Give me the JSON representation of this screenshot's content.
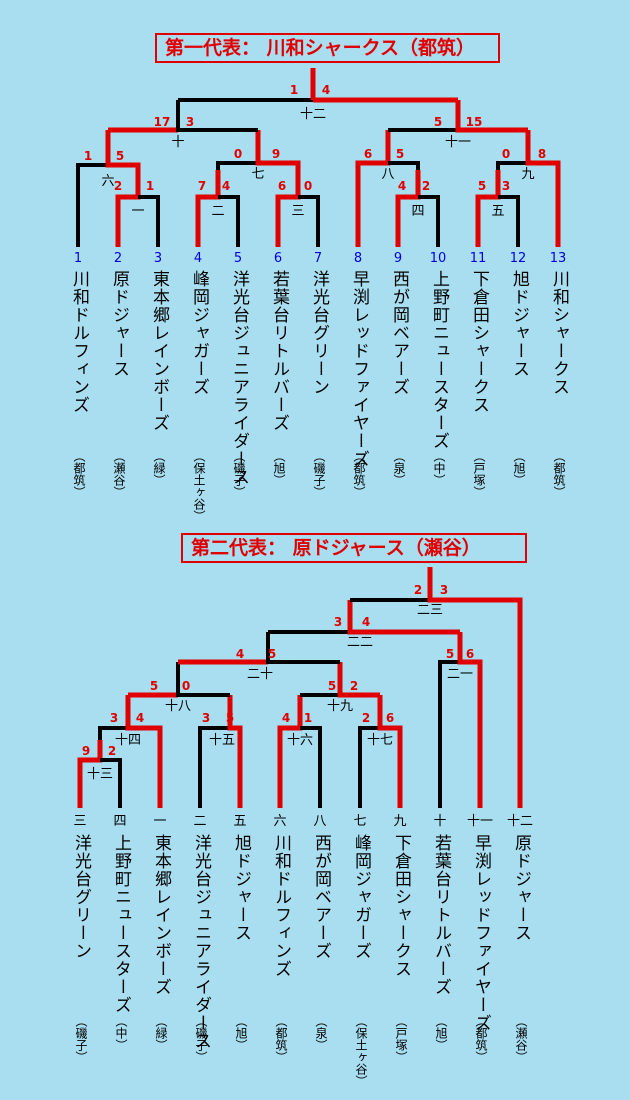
{
  "colors": {
    "background": "#a8def0",
    "win": "#e00000",
    "lose": "#000000",
    "seed_blue": "#0000dd",
    "title_red": "#e00000"
  },
  "bracket1": {
    "title": "第一代表：  川和シャークス（都筑）",
    "seeds": [
      "1",
      "2",
      "3",
      "4",
      "5",
      "6",
      "7",
      "8",
      "9",
      "10",
      "11",
      "12",
      "13"
    ],
    "teams": [
      {
        "name": "川和ドルフィンズ",
        "area": "（都筑）"
      },
      {
        "name": "原ドジャース",
        "area": "（瀬谷）"
      },
      {
        "name": "東本郷レインボーズ",
        "area": "（緑）"
      },
      {
        "name": "峰岡ジャガーズ",
        "area": "（保土ヶ谷）"
      },
      {
        "name": "洋光台ジュニアライダース",
        "area": "（磯子）"
      },
      {
        "name": "若葉台リトルバーズ",
        "area": "（旭）"
      },
      {
        "name": "洋光台グリーン",
        "area": "（磯子）"
      },
      {
        "name": "早渕レッドファイヤーズ",
        "area": "（都筑）"
      },
      {
        "name": "西が岡ベアーズ",
        "area": "（泉）"
      },
      {
        "name": "上野町ニュースターズ",
        "area": "（中）"
      },
      {
        "name": "下倉田シャークス",
        "area": "（戸塚）"
      },
      {
        "name": "旭ドジャース",
        "area": "（旭）"
      },
      {
        "name": "川和シャークス",
        "area": "（都筑）"
      }
    ],
    "game_labels": [
      "一",
      "二",
      "三",
      "四",
      "五",
      "六",
      "七",
      "八",
      "九",
      "十",
      "十一",
      "十二"
    ],
    "scores": [
      "2",
      "1",
      "7",
      "4",
      "6",
      "0",
      "4",
      "2",
      "5",
      "3",
      "1",
      "5",
      "0",
      "9",
      "6",
      "5",
      "0",
      "8",
      "17",
      "3",
      "5",
      "15",
      "1",
      "4"
    ]
  },
  "bracket2": {
    "title": "第二代表：    原ドジャース（瀬谷）",
    "seed_labels": [
      "三",
      "四",
      "一",
      "二",
      "五",
      "六",
      "八",
      "七",
      "九",
      "十",
      "十一",
      "十二"
    ],
    "teams": [
      {
        "name": "洋光台グリーン",
        "area": "（磯子）"
      },
      {
        "name": "上野町ニュースターズ",
        "area": "（中）"
      },
      {
        "name": "東本郷レインボーズ",
        "area": "（緑）"
      },
      {
        "name": "洋光台ジュニアライダース",
        "area": "（磯子）"
      },
      {
        "name": "旭ドジャース",
        "area": "（旭）"
      },
      {
        "name": "川和ドルフィンズ",
        "area": "（都筑）"
      },
      {
        "name": "西が岡ベアーズ",
        "area": "（泉）"
      },
      {
        "name": "峰岡ジャガーズ",
        "area": "（保土ヶ谷）"
      },
      {
        "name": "下倉田シャークス",
        "area": "（戸塚）"
      },
      {
        "name": "若葉台リトルバーズ",
        "area": "（旭）"
      },
      {
        "name": "早渕レッドファイヤーズ",
        "area": "（都筑）"
      },
      {
        "name": "原ドジャース",
        "area": "（瀬谷）"
      }
    ],
    "game_labels": [
      "十三",
      "十四",
      "十五",
      "十六",
      "十七",
      "十八",
      "十九",
      "二十",
      "二一",
      "二二",
      "二三"
    ],
    "scores": [
      "9",
      "2",
      "3",
      "4",
      "3",
      "5",
      "4",
      "1",
      "2",
      "6",
      "5",
      "0",
      "4",
      "5",
      "5",
      "2",
      "5",
      "6",
      "3",
      "4",
      "2",
      "3"
    ]
  }
}
